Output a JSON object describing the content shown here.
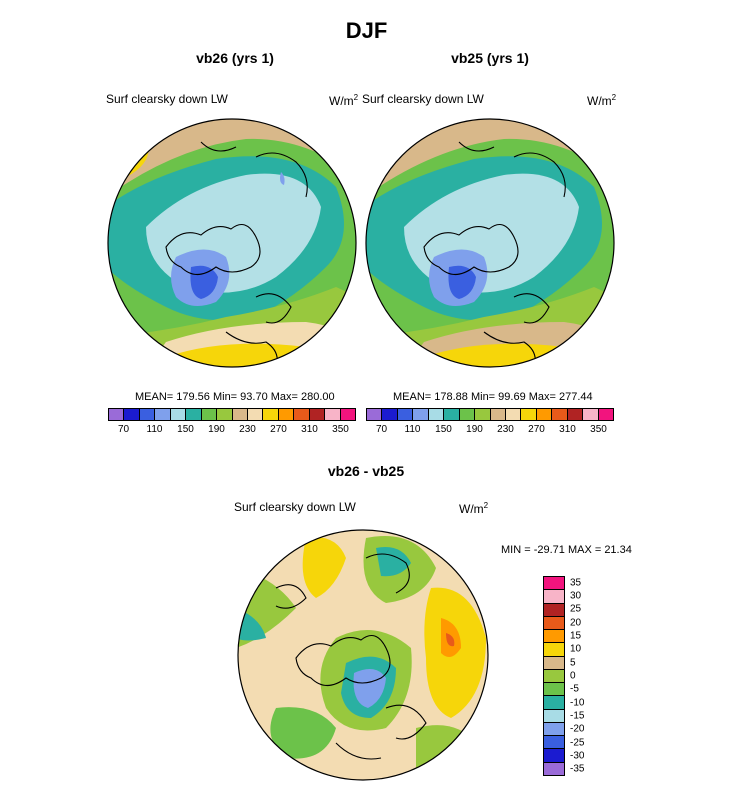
{
  "figure": {
    "season": "DJF",
    "panel_left_title": "vb26 (yrs 1)",
    "panel_right_title": "vb25 (yrs 1)",
    "panel_diff_title": "vb26 - vb25",
    "field_label": "Surf clearsky down LW",
    "units_base": "W/m",
    "units_exp": "2"
  },
  "stats": {
    "left": "MEAN= 179.56  Min=  93.70  Max= 280.00",
    "right": "MEAN= 178.88  Min=  99.69  Max= 277.44",
    "diff": "MIN = -29.71 MAX =  21.34"
  },
  "colors": {
    "abs_levels": [
      "#9a6bd8",
      "#1b1bd0",
      "#3a5fe0",
      "#7fa0ec",
      "#a8dce6",
      "#2ab0a2",
      "#6cc24a",
      "#98c83e",
      "#d8b88a",
      "#f3dcb2",
      "#f6d60a",
      "#ff9a00",
      "#e85a1a",
      "#b02323",
      "#f8b4c8",
      "#f2147e"
    ],
    "diff_levels": [
      "#f2147e",
      "#f8b4c8",
      "#b02323",
      "#e85a1a",
      "#ff9a00",
      "#f6d60a",
      "#d8b88a",
      "#98c83e",
      "#6cc24a",
      "#2ab0a2",
      "#a8dce6",
      "#7fa0ec",
      "#3a5fe0",
      "#1b1bd0",
      "#9a6bd8"
    ],
    "map_palette": {
      "light_cyan": "#b3e0e6",
      "teal": "#2ab0a2",
      "green": "#6cc24a",
      "olive": "#98c83e",
      "tan": "#d8b88a",
      "beige": "#f3dcb2",
      "yellow": "#f6d60a",
      "blue": "#3a5fe0",
      "light_blue": "#7fa0ec",
      "orange": "#ff9a00",
      "red": "#e85a1a"
    }
  },
  "chart_data": [
    {
      "type": "heatmap",
      "title": "vb26 (yrs 1)",
      "variable": "Surf clearsky down LW",
      "units": "W/m2",
      "mean": 179.56,
      "min": 93.7,
      "max": 280.0,
      "colorbar_levels": [
        70,
        80,
        90,
        100,
        110,
        120,
        130,
        140,
        150,
        160,
        170,
        180,
        190,
        200,
        210,
        220,
        230,
        240,
        250,
        260,
        270,
        280,
        290,
        300,
        310,
        320,
        330,
        340,
        350
      ],
      "colorbar_tick_labels": [
        "70",
        "110",
        "150",
        "190",
        "230",
        "270",
        "310",
        "350"
      ]
    },
    {
      "type": "heatmap",
      "title": "vb25 (yrs 1)",
      "variable": "Surf clearsky down LW",
      "units": "W/m2",
      "mean": 178.88,
      "min": 99.69,
      "max": 277.44,
      "colorbar_tick_labels": [
        "70",
        "110",
        "150",
        "190",
        "230",
        "270",
        "310",
        "350"
      ]
    },
    {
      "type": "heatmap",
      "title": "vb26 - vb25",
      "variable": "Surf clearsky down LW",
      "units": "W/m2",
      "min": -29.71,
      "max": 21.34,
      "colorbar_tick_labels": [
        "35",
        "30",
        "25",
        "20",
        "15",
        "10",
        "5",
        "0",
        "-5",
        "-10",
        "-15",
        "-20",
        "-25",
        "-30",
        "-35"
      ]
    }
  ]
}
